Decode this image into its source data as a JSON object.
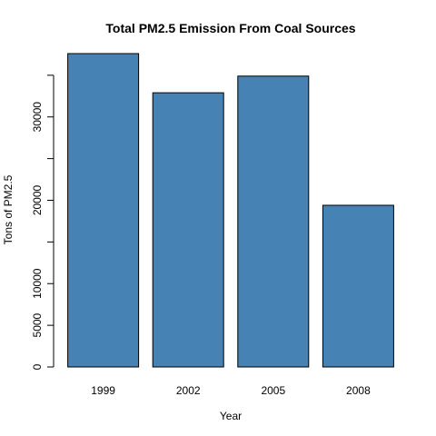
{
  "chart_data": {
    "type": "bar",
    "title": "Total PM2.5 Emission From Coal Sources",
    "xlabel": "Year",
    "ylabel": "Tons of PM2.5",
    "categories": [
      "1999",
      "2002",
      "2005",
      "2008"
    ],
    "values": [
      37600,
      32900,
      34900,
      19400
    ],
    "ylim": [
      0,
      37600
    ],
    "yticks": [
      0,
      5000,
      10000,
      20000,
      30000
    ],
    "ytick_labels": [
      "0",
      "5000",
      "10000",
      "20000",
      "30000"
    ],
    "bar_color": "#4682b4",
    "bar_outline_color": "#000000",
    "grid": false,
    "legend": "none"
  }
}
